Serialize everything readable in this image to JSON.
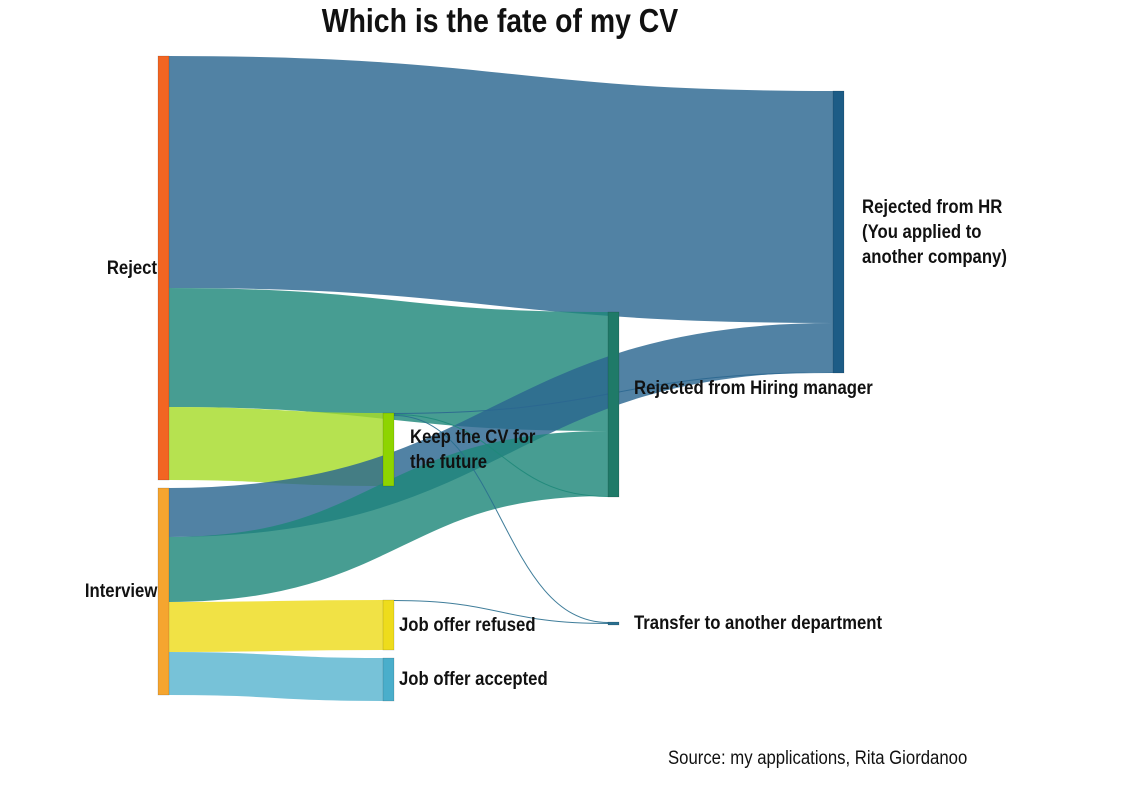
{
  "title": "Which is the fate of my CV",
  "source": "Source: my applications, Rita Giordanoo",
  "nodes": [
    {
      "id": "reject",
      "label": "Reject",
      "color": "#f26522"
    },
    {
      "id": "interview",
      "label": "Interview",
      "color": "#f5a52f"
    },
    {
      "id": "keep",
      "label": "Keep the CV for\nthe future",
      "color": "#8ed400"
    },
    {
      "id": "refused",
      "label": "Job offer refused",
      "color": "#eedc1c"
    },
    {
      "id": "accepted",
      "label": "Job offer accepted",
      "color": "#4aaecb"
    },
    {
      "id": "hiring",
      "label": "Rejected from Hiring manager",
      "color": "#1f7a68"
    },
    {
      "id": "transfer",
      "label": "Transfer to another department",
      "color": "#2a6f8f"
    },
    {
      "id": "hr",
      "label": "Rejected from HR\n(You applied to\nanother company)",
      "color": "#1d5c86"
    }
  ],
  "links": [
    {
      "source": "reject",
      "target": "hr",
      "value": 232,
      "color": "#2b6790"
    },
    {
      "source": "reject",
      "target": "hiring",
      "value": 119,
      "color": "#1f887a"
    },
    {
      "source": "reject",
      "target": "keep",
      "value": 73,
      "color": "#a6dc2a"
    },
    {
      "source": "interview",
      "target": "hr",
      "value": 49,
      "color": "#2b6790"
    },
    {
      "source": "interview",
      "target": "hiring",
      "value": 65,
      "color": "#1f887a"
    },
    {
      "source": "interview",
      "target": "refused",
      "value": 50,
      "color": "#eedc1c"
    },
    {
      "source": "interview",
      "target": "accepted",
      "value": 43,
      "color": "#59b5cf"
    },
    {
      "source": "keep",
      "target": "hr",
      "value": 1,
      "color": "#2b6790"
    },
    {
      "source": "keep",
      "target": "hiring",
      "value": 1,
      "color": "#1f887a"
    },
    {
      "source": "keep",
      "target": "transfer",
      "value": 1,
      "color": "#2a6f8f"
    },
    {
      "source": "refused",
      "target": "transfer",
      "value": 1,
      "color": "#2a6f8f"
    }
  ]
}
